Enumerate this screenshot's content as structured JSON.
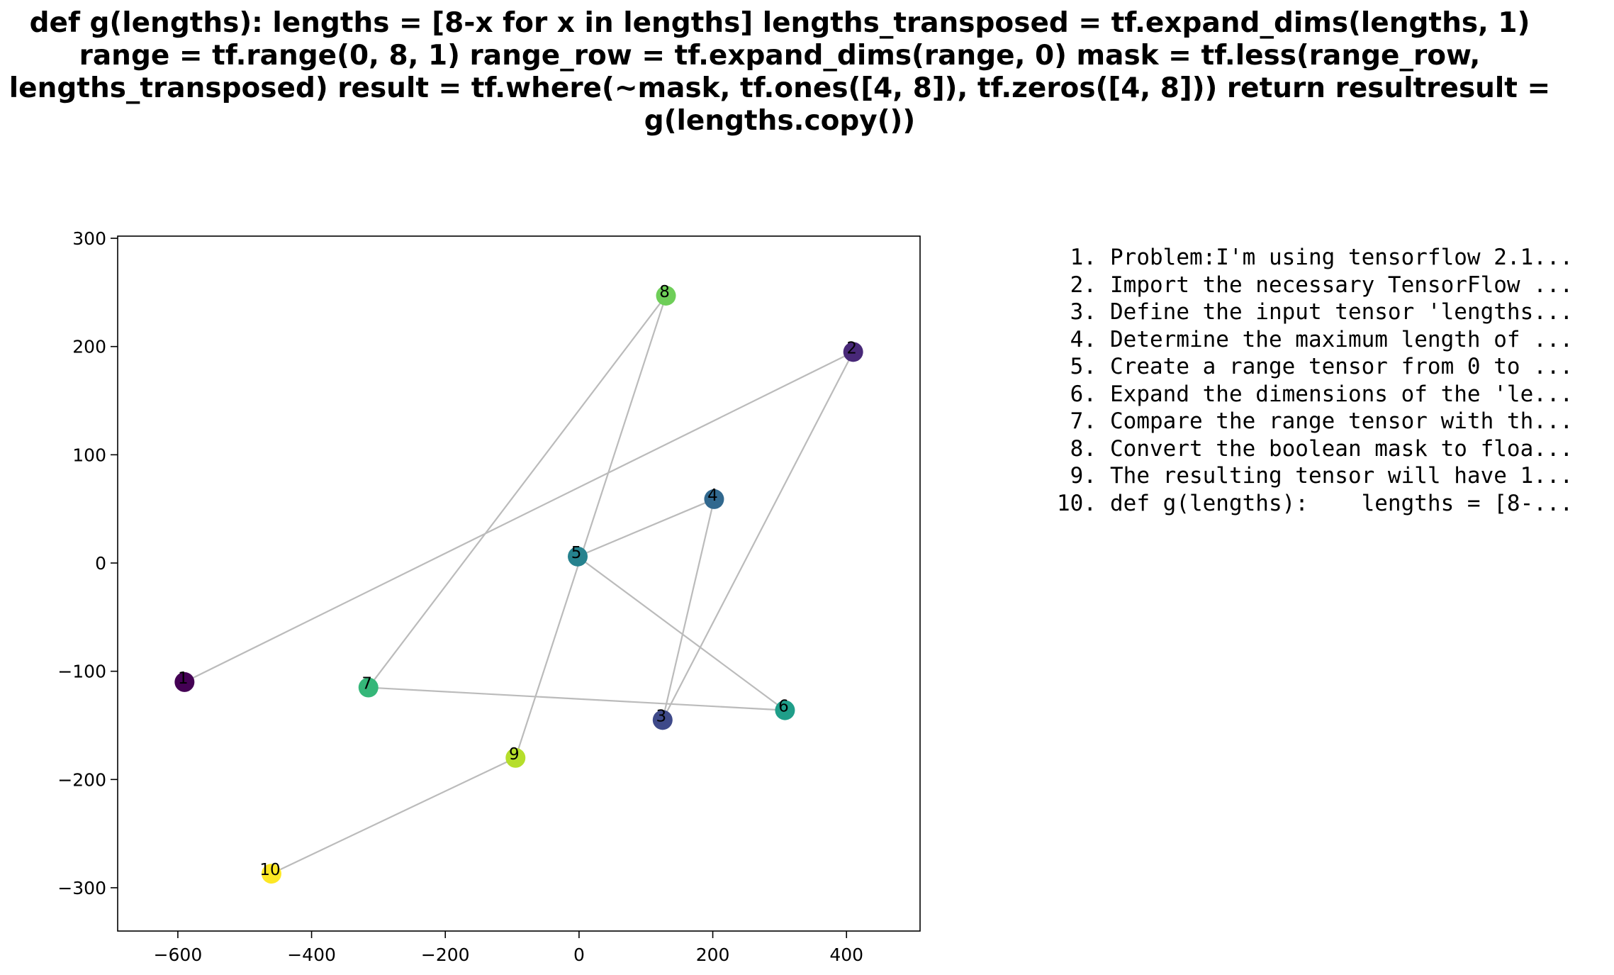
{
  "figure": {
    "title": "def g(lengths):    lengths = [8-x for x in lengths]    lengths_transposed = tf.expand_dims(lengths, 1)    range = tf.range(0, 8, 1)    range_row = tf.expand_dims(range, 0)    mask = tf.less(range_row, lengths_transposed)    result = tf.where(~mask, tf.ones([4, 8]), tf.zeros([4, 8]))    return resultresult = g(lengths.copy())"
  },
  "chart_data": {
    "type": "scatter",
    "title": "",
    "xlabel": "",
    "ylabel": "",
    "xlim": [
      -690,
      510
    ],
    "ylim": [
      -340,
      302
    ],
    "xticks": [
      -600,
      -400,
      -200,
      0,
      200,
      400
    ],
    "yticks": [
      -300,
      -200,
      -100,
      0,
      100,
      200,
      300
    ],
    "xtick_labels": [
      "−600",
      "−400",
      "−200",
      "0",
      "200",
      "400"
    ],
    "ytick_labels": [
      "−300",
      "−200",
      "−100",
      "0",
      "100",
      "200",
      "300"
    ],
    "grid": false,
    "colormap": "viridis",
    "connector_color": "#bbbbbb",
    "points": [
      {
        "label": "1",
        "x": -590,
        "y": -110,
        "color": "#440154"
      },
      {
        "label": "2",
        "x": 410,
        "y": 195,
        "color": "#482878"
      },
      {
        "label": "3",
        "x": 125,
        "y": -145,
        "color": "#3e4989"
      },
      {
        "label": "4",
        "x": 202,
        "y": 59,
        "color": "#31688e"
      },
      {
        "label": "5",
        "x": -2,
        "y": 6,
        "color": "#26828e"
      },
      {
        "label": "6",
        "x": 308,
        "y": -136,
        "color": "#1f9e89"
      },
      {
        "label": "7",
        "x": -315,
        "y": -115,
        "color": "#35b779"
      },
      {
        "label": "8",
        "x": 130,
        "y": 247,
        "color": "#6ece58"
      },
      {
        "label": "9",
        "x": -95,
        "y": -180,
        "color": "#b5de2b"
      },
      {
        "label": "10",
        "x": -460,
        "y": -287,
        "color": "#fde725"
      }
    ]
  },
  "steps": [
    {
      "num": "1.",
      "text": "Problem:I'm using tensorflow 2.1..."
    },
    {
      "num": "2.",
      "text": "Import the necessary TensorFlow ..."
    },
    {
      "num": "3.",
      "text": "Define the input tensor 'lengths..."
    },
    {
      "num": "4.",
      "text": "Determine the maximum length of ..."
    },
    {
      "num": "5.",
      "text": "Create a range tensor from 0 to ..."
    },
    {
      "num": "6.",
      "text": "Expand the dimensions of the 'le..."
    },
    {
      "num": "7.",
      "text": "Compare the range tensor with th..."
    },
    {
      "num": "8.",
      "text": "Convert the boolean mask to floa..."
    },
    {
      "num": "9.",
      "text": "The resulting tensor will have 1..."
    },
    {
      "num": "10.",
      "text": "def g(lengths):    lengths = [8-..."
    }
  ]
}
